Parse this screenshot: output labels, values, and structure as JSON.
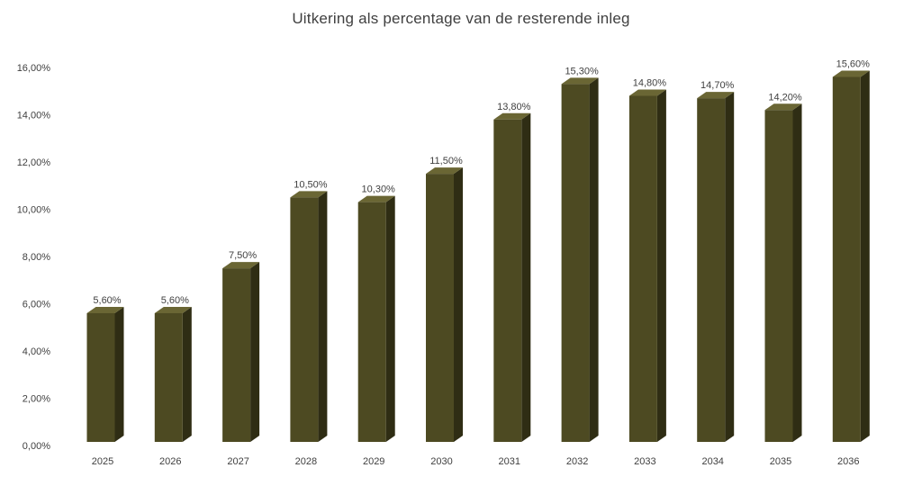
{
  "chart_data": {
    "type": "bar",
    "title": "Uitkering als percentage van de resterende inleg",
    "xlabel": "",
    "ylabel": "",
    "categories": [
      "2025",
      "2026",
      "2027",
      "2028",
      "2029",
      "2030",
      "2031",
      "2032",
      "2033",
      "2034",
      "2035",
      "2036"
    ],
    "values": [
      5.6,
      5.6,
      7.5,
      10.5,
      10.3,
      11.5,
      13.8,
      15.3,
      14.8,
      14.7,
      14.2,
      15.6
    ],
    "data_labels": [
      "5,60%",
      "5,60%",
      "7,50%",
      "10,50%",
      "10,30%",
      "11,50%",
      "13,80%",
      "15,30%",
      "14,80%",
      "14,70%",
      "14,20%",
      "15,60%"
    ],
    "y_ticks": [
      0,
      2,
      4,
      6,
      8,
      10,
      12,
      14,
      16
    ],
    "y_tick_labels": [
      "0,00%",
      "2,00%",
      "4,00%",
      "6,00%",
      "8,00%",
      "10,00%",
      "12,00%",
      "14,00%",
      "16,00%"
    ],
    "ylim": [
      0,
      16
    ],
    "grid": false,
    "legend": "none",
    "style": "3d-column",
    "colors": {
      "bar_front": "#4d4a22",
      "bar_side": "#2f2d14",
      "bar_top": "#6a6634",
      "text": "#404040"
    }
  }
}
